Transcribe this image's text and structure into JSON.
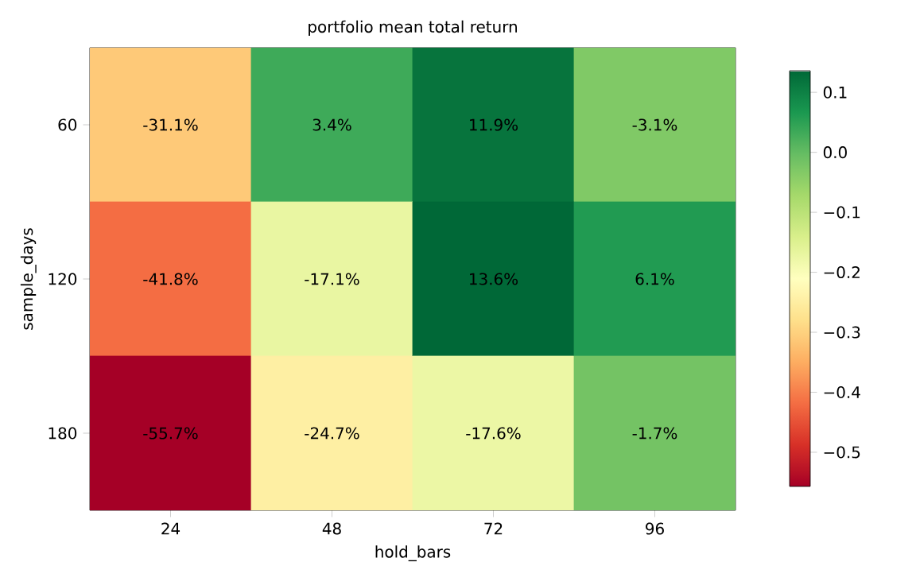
{
  "chart_data": {
    "type": "heatmap",
    "title": "portfolio mean total return",
    "xlabel": "hold_bars",
    "ylabel": "sample_days",
    "categories": [
      "24",
      "48",
      "72",
      "96"
    ],
    "y_categories": [
      "60",
      "120",
      "180"
    ],
    "cells": [
      [
        -0.311,
        0.034,
        0.119,
        -0.031
      ],
      [
        -0.418,
        -0.171,
        0.136,
        0.061
      ],
      [
        -0.557,
        -0.247,
        -0.176,
        -0.017
      ]
    ],
    "cell_labels": [
      [
        "-31.1%",
        "3.4%",
        "11.9%",
        "-3.1%"
      ],
      [
        "-41.8%",
        "-17.1%",
        "13.6%",
        "6.1%"
      ],
      [
        "-55.7%",
        "-24.7%",
        "-17.6%",
        "-1.7%"
      ]
    ],
    "clim": [
      -0.557,
      0.136
    ],
    "cticks": [
      {
        "value": 0.1,
        "label": "0.1"
      },
      {
        "value": 0.0,
        "label": "0.0"
      },
      {
        "value": -0.1,
        "label": "−0.1"
      },
      {
        "value": -0.2,
        "label": "−0.2"
      },
      {
        "value": -0.3,
        "label": "−0.3"
      },
      {
        "value": -0.4,
        "label": "−0.4"
      },
      {
        "value": -0.5,
        "label": "−0.5"
      }
    ]
  }
}
